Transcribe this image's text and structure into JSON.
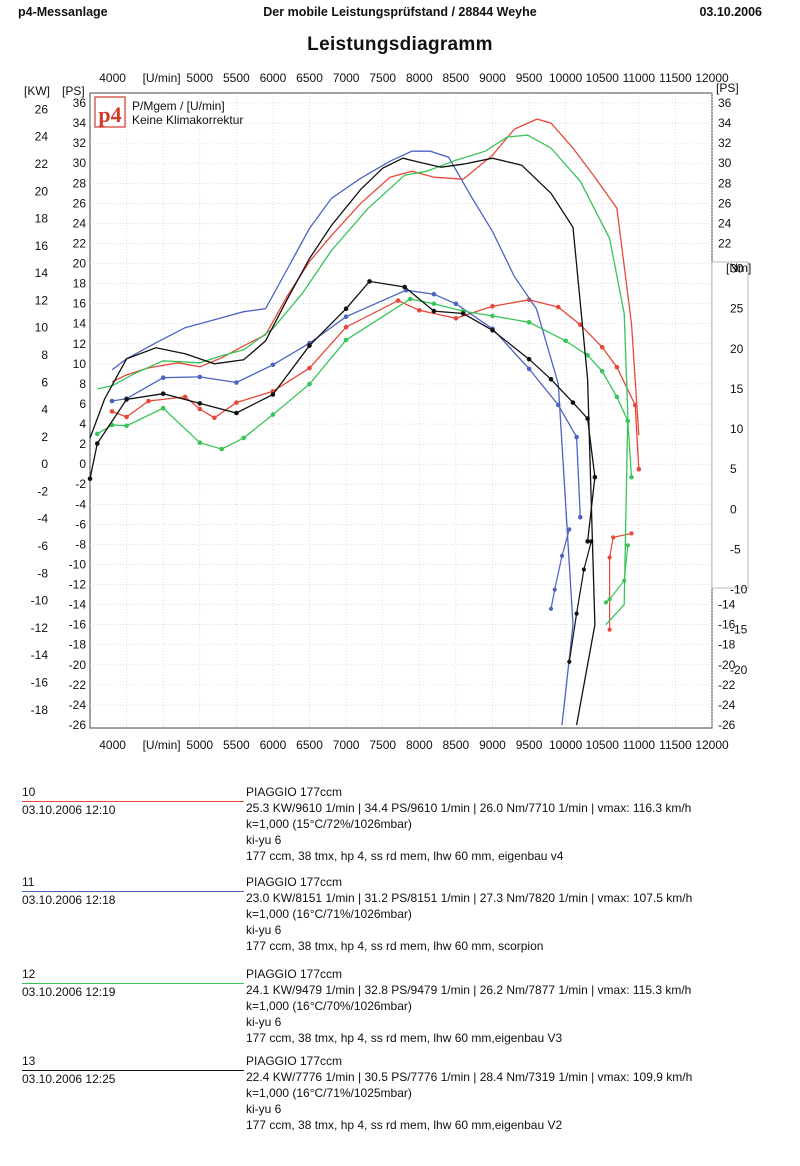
{
  "header": {
    "left": "p4-Messanlage",
    "center": "Der mobile Leistungsprüfstand  / 28844 Weyhe",
    "right": "03.10.2006"
  },
  "chart_data": {
    "type": "line",
    "title": "Leistungsdiagramm",
    "legend": {
      "logo": "p4",
      "line1": "P/Mgem / [U/min]",
      "line2": "Keine Klimakorrektur",
      "placement": "top-left"
    },
    "x_axis": {
      "unit_label": "[U/min]",
      "range": [
        3500,
        12000
      ],
      "ticks": [
        "4000",
        "5000",
        "5500",
        "6000",
        "6500",
        "7000",
        "7500",
        "8000",
        "8500",
        "9000",
        "9500",
        "10000",
        "10500",
        "11000",
        "11500",
        "12000"
      ]
    },
    "kw_axis": {
      "label": "[KW]",
      "range": [
        -18,
        26
      ],
      "ticks": [
        "26",
        "24",
        "22",
        "20",
        "18",
        "16",
        "14",
        "12",
        "10",
        "8",
        "6",
        "4",
        "2",
        "0",
        "-2",
        "-4",
        "-6",
        "-8",
        "-10",
        "-12",
        "-14",
        "-16",
        "-18"
      ]
    },
    "ps_axis": {
      "label": "[PS]",
      "range": [
        -26,
        36
      ],
      "ticks": [
        "36",
        "34",
        "32",
        "30",
        "28",
        "26",
        "24",
        "22",
        "20",
        "18",
        "16",
        "14",
        "12",
        "10",
        "8",
        "6",
        "4",
        "2",
        "0",
        "-2",
        "-4",
        "-6",
        "-8",
        "-10",
        "-12",
        "-14",
        "-16",
        "-18",
        "-20",
        "-22",
        "-24",
        "-26"
      ]
    },
    "ps_right_ticks": [
      "36",
      "34",
      "32",
      "30",
      "28",
      "26",
      "24",
      "22",
      "-14",
      "-16",
      "-18",
      "-20",
      "-22",
      "-24",
      "-26"
    ],
    "nm_axis": {
      "label": "[Nm]",
      "range": [
        -20,
        30
      ],
      "ticks": [
        "30",
        "25",
        "20",
        "15",
        "10",
        "5",
        "0",
        "-5",
        "-10",
        "-15",
        "-20"
      ]
    },
    "grid": true,
    "series": [
      {
        "name": "10",
        "color": "#e8483a",
        "power_ps": [
          [
            3800,
            8.2
          ],
          [
            4000,
            8.9
          ],
          [
            4300,
            9.6
          ],
          [
            4700,
            10.1
          ],
          [
            5000,
            9.7
          ],
          [
            5300,
            10.6
          ],
          [
            5600,
            11.8
          ],
          [
            5900,
            12.9
          ],
          [
            6200,
            16.8
          ],
          [
            6500,
            20.2
          ],
          [
            6800,
            22.8
          ],
          [
            7200,
            26
          ],
          [
            7600,
            28.6
          ],
          [
            7900,
            29.2
          ],
          [
            8200,
            28.6
          ],
          [
            8600,
            28.4
          ],
          [
            9000,
            30.8
          ],
          [
            9300,
            33.4
          ],
          [
            9610,
            34.4
          ],
          [
            9800,
            34
          ],
          [
            10100,
            31.5
          ],
          [
            10400,
            28.6
          ],
          [
            10700,
            25.5
          ],
          [
            10900,
            14
          ],
          [
            11000,
            2.9
          ]
        ],
        "torque_nm": [
          [
            3800,
            12.2
          ],
          [
            4000,
            11.5
          ],
          [
            4300,
            13.5
          ],
          [
            4800,
            14
          ],
          [
            5000,
            12.5
          ],
          [
            5200,
            11.4
          ],
          [
            5500,
            13.3
          ],
          [
            6000,
            14.7
          ],
          [
            6500,
            17.6
          ],
          [
            7000,
            22.7
          ],
          [
            7710,
            26
          ],
          [
            8000,
            24.8
          ],
          [
            8500,
            23.8
          ],
          [
            9000,
            25.3
          ],
          [
            9500,
            26.1
          ],
          [
            9900,
            25.2
          ],
          [
            10200,
            23
          ],
          [
            10500,
            20.2
          ],
          [
            10700,
            17.7
          ],
          [
            10950,
            13
          ],
          [
            11000,
            5
          ]
        ],
        "decel_nm": [
          [
            10600,
            -15
          ],
          [
            10600,
            -6
          ],
          [
            10650,
            -3.5
          ],
          [
            10900,
            -3
          ]
        ]
      },
      {
        "name": "11",
        "color": "#4d63c1",
        "power_ps": [
          [
            3800,
            9.4
          ],
          [
            4000,
            10.5
          ],
          [
            4400,
            12.1
          ],
          [
            4800,
            13.6
          ],
          [
            5200,
            14.4
          ],
          [
            5600,
            15.2
          ],
          [
            5900,
            15.5
          ],
          [
            6200,
            19.5
          ],
          [
            6500,
            23.5
          ],
          [
            6800,
            26.5
          ],
          [
            7200,
            28.5
          ],
          [
            7600,
            30.2
          ],
          [
            7900,
            31.2
          ],
          [
            8151,
            31.2
          ],
          [
            8400,
            30.6
          ],
          [
            8700,
            26.8
          ],
          [
            9000,
            23.2
          ],
          [
            9300,
            18.7
          ],
          [
            9600,
            15.5
          ],
          [
            9900,
            8
          ],
          [
            10100,
            -16
          ],
          [
            9950,
            -26
          ]
        ],
        "torque_nm": [
          [
            3800,
            13.5
          ],
          [
            4000,
            13.8
          ],
          [
            4500,
            16.4
          ],
          [
            5000,
            16.5
          ],
          [
            5500,
            15.8
          ],
          [
            6000,
            18
          ],
          [
            6500,
            20.7
          ],
          [
            7000,
            24
          ],
          [
            7820,
            27.3
          ],
          [
            8200,
            26.8
          ],
          [
            8500,
            25.6
          ],
          [
            9000,
            22.5
          ],
          [
            9500,
            17.5
          ],
          [
            9900,
            13
          ],
          [
            10150,
            9
          ],
          [
            10200,
            -1
          ]
        ],
        "decel_nm": [
          [
            9800,
            -12.4
          ],
          [
            9850,
            -10
          ],
          [
            9950,
            -5.8
          ],
          [
            10050,
            -2.5
          ]
        ]
      },
      {
        "name": "12",
        "color": "#38c45a",
        "power_ps": [
          [
            3600,
            7.5
          ],
          [
            3800,
            7.8
          ],
          [
            4100,
            9
          ],
          [
            4500,
            10.3
          ],
          [
            5000,
            10.1
          ],
          [
            5300,
            10.8
          ],
          [
            5600,
            11.4
          ],
          [
            6000,
            13.5
          ],
          [
            6400,
            17
          ],
          [
            6800,
            21.3
          ],
          [
            7300,
            25.5
          ],
          [
            7800,
            28.8
          ],
          [
            8100,
            29.2
          ],
          [
            8500,
            30.3
          ],
          [
            8900,
            31.2
          ],
          [
            9200,
            32.6
          ],
          [
            9479,
            32.8
          ],
          [
            9800,
            31.5
          ],
          [
            10200,
            28.2
          ],
          [
            10600,
            22.5
          ],
          [
            10800,
            15
          ],
          [
            10850,
            5
          ],
          [
            10800,
            -14
          ],
          [
            10550,
            -16
          ]
        ],
        "torque_nm": [
          [
            3600,
            9.4
          ],
          [
            3800,
            10.5
          ],
          [
            4000,
            10.4
          ],
          [
            4500,
            12.6
          ],
          [
            5000,
            8.3
          ],
          [
            5300,
            7.5
          ],
          [
            5600,
            8.9
          ],
          [
            6000,
            11.8
          ],
          [
            6500,
            15.6
          ],
          [
            7000,
            21.1
          ],
          [
            7877,
            26.2
          ],
          [
            8200,
            25.6
          ],
          [
            8600,
            24.7
          ],
          [
            9000,
            24.1
          ],
          [
            9500,
            23.3
          ],
          [
            10000,
            21
          ],
          [
            10300,
            19.2
          ],
          [
            10500,
            17.2
          ],
          [
            10700,
            14
          ],
          [
            10850,
            11
          ],
          [
            10900,
            4
          ]
        ],
        "decel_nm": [
          [
            10550,
            -11.6
          ],
          [
            10600,
            -11.2
          ],
          [
            10800,
            -8.9
          ],
          [
            10850,
            -4.5
          ]
        ]
      },
      {
        "name": "13",
        "color": "#111111",
        "power_ps": [
          [
            3500,
            2.6
          ],
          [
            3700,
            6.5
          ],
          [
            4000,
            10.5
          ],
          [
            4400,
            11.6
          ],
          [
            4800,
            11
          ],
          [
            5200,
            10
          ],
          [
            5600,
            10.4
          ],
          [
            5900,
            12.3
          ],
          [
            6200,
            16.5
          ],
          [
            6500,
            20.5
          ],
          [
            6800,
            23.8
          ],
          [
            7200,
            27.4
          ],
          [
            7500,
            29.5
          ],
          [
            7776,
            30.5
          ],
          [
            8000,
            30.1
          ],
          [
            8300,
            29.6
          ],
          [
            8600,
            29.9
          ],
          [
            9000,
            30.5
          ],
          [
            9400,
            29.8
          ],
          [
            9800,
            27
          ],
          [
            10100,
            23.6
          ],
          [
            10300,
            8.5
          ],
          [
            10400,
            -16
          ],
          [
            10150,
            -26
          ]
        ],
        "torque_nm": [
          [
            3500,
            3.8
          ],
          [
            3600,
            8.2
          ],
          [
            4000,
            13.7
          ],
          [
            4500,
            14.4
          ],
          [
            5000,
            13.2
          ],
          [
            5500,
            12
          ],
          [
            6000,
            14.3
          ],
          [
            6500,
            20.4
          ],
          [
            7000,
            25
          ],
          [
            7319,
            28.4
          ],
          [
            7800,
            27.7
          ],
          [
            8200,
            24.7
          ],
          [
            8600,
            24.4
          ],
          [
            9000,
            22.3
          ],
          [
            9500,
            18.7
          ],
          [
            9800,
            16.2
          ],
          [
            10100,
            13.3
          ],
          [
            10300,
            11.3
          ],
          [
            10400,
            4
          ],
          [
            10300,
            -4
          ]
        ],
        "decel_nm": [
          [
            10050,
            -19
          ],
          [
            10150,
            -13
          ],
          [
            10250,
            -7.5
          ],
          [
            10350,
            -4
          ]
        ]
      }
    ]
  },
  "runs": [
    {
      "number": "10",
      "datetime": "03.10.2006  12:10",
      "model": "PIAGGIO 177ccm",
      "result": "25.3 KW/9610 1/min  |  34.4 PS/9610 1/min  |  26.0 Nm/7710 1/min | vmax: 116.3 km/h",
      "conditions": "k=1,000 (15°C/72%/1026mbar)",
      "setup": "ki-yu 6",
      "parts": "177 ccm, 38 tmx, hp 4, ss rd mem, lhw 60 mm, eigenbau v4",
      "color": "#e8483a"
    },
    {
      "number": "11",
      "datetime": "03.10.2006  12:18",
      "model": "PIAGGIO 177ccm",
      "result": "23.0 KW/8151 1/min  |  31.2 PS/8151 1/min  |  27.3 Nm/7820 1/min | vmax: 107.5 km/h",
      "conditions": "k=1,000 (16°C/71%/1026mbar)",
      "setup": "ki-yu 6",
      "parts": "177 ccm, 38 tmx, hp 4, ss rd mem, lhw 60 mm, scorpion",
      "color": "#4d63c1"
    },
    {
      "number": "12",
      "datetime": "03.10.2006  12:19",
      "model": "PIAGGIO 177ccm",
      "result": "24.1 KW/9479 1/min  |  32.8 PS/9479 1/min  |  26.2 Nm/7877 1/min | vmax: 115.3 km/h",
      "conditions": "k=1,000 (16°C/70%/1026mbar)",
      "setup": "ki-yu 6",
      "parts": "177 ccm, 38 tmx, hp 4, ss rd mem, lhw 60 mm,eigenbau V3",
      "color": "#38c45a"
    },
    {
      "number": "13",
      "datetime": "03.10.2006  12:25",
      "model": "PIAGGIO 177ccm",
      "result": "22.4 KW/7776 1/min  |  30.5 PS/7776 1/min  |  28.4 Nm/7319 1/min | vmax: 109.9 km/h",
      "conditions": "k=1,000 (16°C/71%/1025mbar)",
      "setup": "ki-yu 6",
      "parts": "177 ccm, 38 tmx, hp 4, ss rd mem, lhw 60 mm,eigenbau V2",
      "color": "#111111"
    }
  ]
}
